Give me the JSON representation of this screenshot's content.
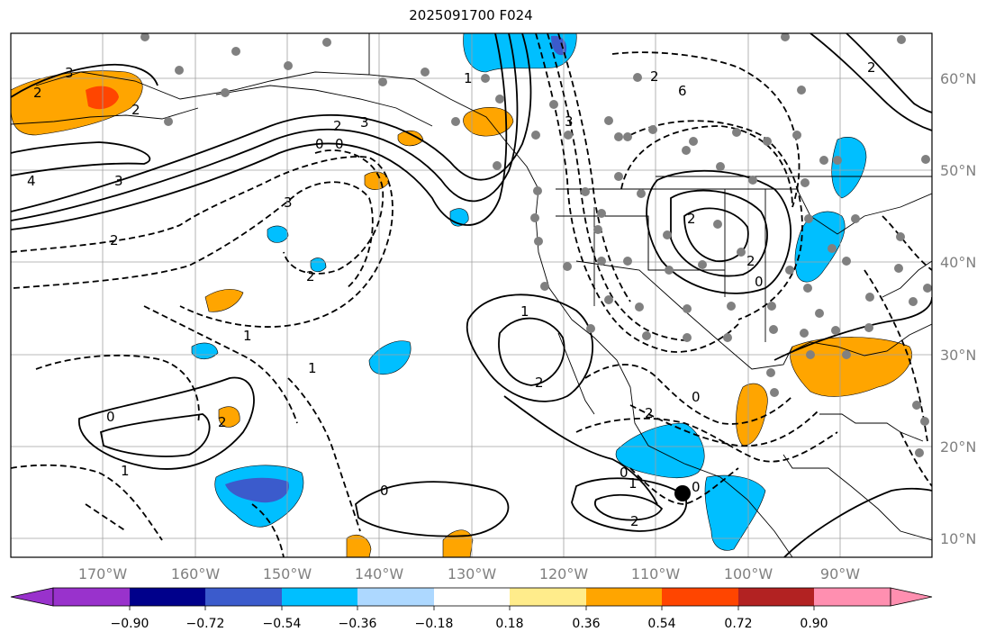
{
  "title": "2025091700 F024",
  "map": {
    "projection": "cylindrical",
    "lon_range": [
      -180,
      -80
    ],
    "lat_range": [
      8,
      65
    ],
    "lat_labels": [
      "60°N",
      "50°N",
      "40°N",
      "30°N",
      "20°N",
      "10°N"
    ],
    "lon_labels": [
      "170°W",
      "160°W",
      "150°W",
      "140°W",
      "130°W",
      "120°W",
      "110°W",
      "100°W",
      "90°W"
    ],
    "gridlines": true,
    "contour_labels": [
      "3",
      "2",
      "2",
      "4",
      "3",
      "0",
      "0",
      "2",
      "3",
      "3",
      "2",
      "1",
      "1",
      "0",
      "1",
      "2",
      "0",
      "2",
      "1",
      "2",
      "0",
      "1",
      "2",
      "0",
      "6",
      "2",
      "3",
      "2",
      "2",
      "0",
      "2",
      "1",
      "0",
      "2"
    ],
    "marker": {
      "lon": -107,
      "lat": 15,
      "color": "#000000"
    }
  },
  "colorbar": {
    "ticks": [
      "−0.90",
      "−0.72",
      "−0.54",
      "−0.36",
      "−0.18",
      "0.18",
      "0.36",
      "0.54",
      "0.72",
      "0.90"
    ],
    "colors": [
      "#9932cc",
      "#00008b",
      "#3b5bcc",
      "#00bfff",
      "#add8ff",
      "#ffffff",
      "#ffec8b",
      "#ffa500",
      "#ff4500",
      "#b22222",
      "#ff8fb0"
    ]
  }
}
